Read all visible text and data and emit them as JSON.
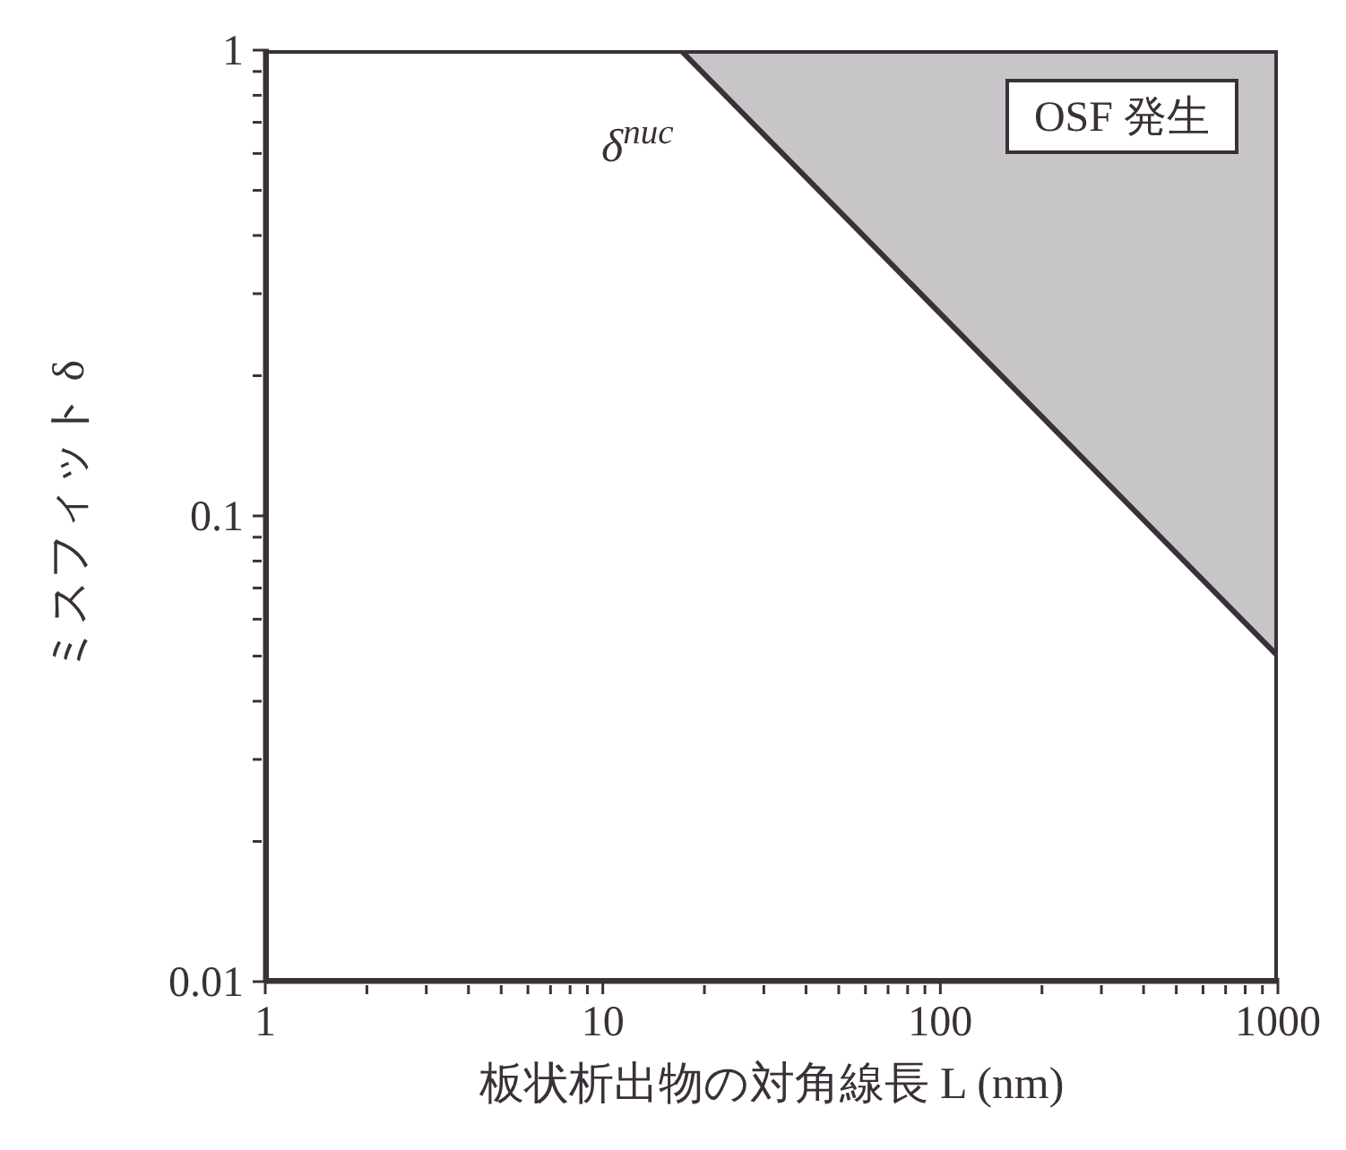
{
  "chart_data": {
    "type": "line",
    "xlabel": "板状析出物の対角線長 L (nm)",
    "ylabel": "ミスフィット δ",
    "log": "xy",
    "xlim": [
      1,
      1000
    ],
    "ylim": [
      0.01,
      1
    ],
    "xticks": [
      1,
      {
        "value": 2,
        "label": null
      },
      {
        "value": 3,
        "label": null
      },
      {
        "value": 4,
        "label": null
      },
      {
        "value": 5,
        "label": null
      },
      {
        "value": 6,
        "label": null
      },
      {
        "value": 7,
        "label": null
      },
      {
        "value": 8,
        "label": null
      },
      {
        "value": 9,
        "label": null
      },
      10,
      {
        "value": 20,
        "label": null
      },
      {
        "value": 30,
        "label": null
      },
      {
        "value": 40,
        "label": null
      },
      {
        "value": 50,
        "label": null
      },
      {
        "value": 60,
        "label": null
      },
      {
        "value": 70,
        "label": null
      },
      {
        "value": 80,
        "label": null
      },
      {
        "value": 90,
        "label": null
      },
      100,
      {
        "value": 200,
        "label": null
      },
      {
        "value": 300,
        "label": null
      },
      {
        "value": 400,
        "label": null
      },
      {
        "value": 500,
        "label": null
      },
      {
        "value": 600,
        "label": null
      },
      {
        "value": 700,
        "label": null
      },
      {
        "value": 800,
        "label": null
      },
      {
        "value": 900,
        "label": null
      },
      1000
    ],
    "yticks": [
      0.01,
      {
        "value": 0.02,
        "label": null
      },
      {
        "value": 0.03,
        "label": null
      },
      {
        "value": 0.04,
        "label": null
      },
      {
        "value": 0.05,
        "label": null
      },
      {
        "value": 0.06,
        "label": null
      },
      {
        "value": 0.07,
        "label": null
      },
      {
        "value": 0.08,
        "label": null
      },
      {
        "value": 0.09,
        "label": null
      },
      0.1,
      {
        "value": 0.2,
        "label": null
      },
      {
        "value": 0.3,
        "label": null
      },
      {
        "value": 0.4,
        "label": null
      },
      {
        "value": 0.5,
        "label": null
      },
      {
        "value": 0.6,
        "label": null
      },
      {
        "value": 0.7,
        "label": null
      },
      {
        "value": 0.8,
        "label": null
      },
      {
        "value": 0.9,
        "label": null
      },
      1
    ],
    "series": [
      {
        "name": "δ$^{nuc}$",
        "color": "#3a3038",
        "x": [
          17,
          1000
        ],
        "values": [
          1,
          0.05
        ],
        "lower": [
          1,
          0.05
        ],
        "upper": [
          1,
          1
        ]
      }
    ],
    "annotations": [
      "OSF 発生"
    ],
    "marker": "none",
    "line_style": "solid"
  }
}
